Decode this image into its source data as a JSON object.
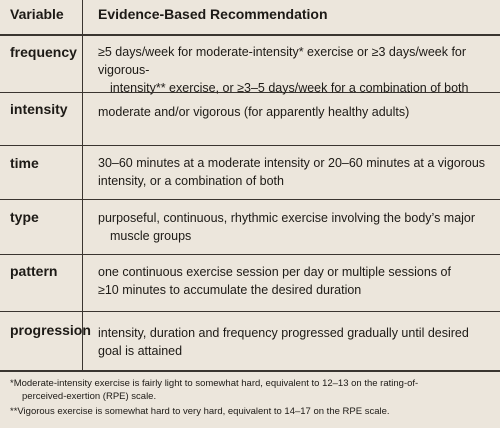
{
  "header": {
    "col1": "Variable",
    "col2": "Evidence-Based Recommendation"
  },
  "rows": [
    {
      "variable": "frequency",
      "line1": "≥5 days/week for moderate-intensity* exercise or ≥3 days/week for vigorous-",
      "line2": "intensity** exercise, or ≥3–5 days/week for a combination of both"
    },
    {
      "variable": "intensity",
      "line1": "moderate and/or vigorous (for apparently healthy adults)",
      "line2": ""
    },
    {
      "variable": "time",
      "line1": "30–60 minutes at a moderate intensity or 20–60 minutes at a vigorous",
      "line2": "intensity, or a combination of both"
    },
    {
      "variable": "type",
      "line1": "purposeful, continuous, rhythmic exercise involving the body’s major",
      "line2": "muscle groups"
    },
    {
      "variable": "pattern",
      "line1": "one continuous exercise session per day or multiple sessions of",
      "line2": "≥10 minutes to accumulate the desired duration"
    },
    {
      "variable": "progression",
      "line1": "intensity, duration and frequency progressed gradually until desired",
      "line2": "goal is attained"
    }
  ],
  "footnotes": {
    "note1_line1": "*Moderate-intensity exercise is fairly light to somewhat hard, equivalent to 12–13 on the rating-of-",
    "note1_line2": "perceived-exertion (RPE) scale.",
    "note2": "**Vigorous exercise is somewhat hard to very hard, equivalent to 14–17 on the RPE scale."
  }
}
